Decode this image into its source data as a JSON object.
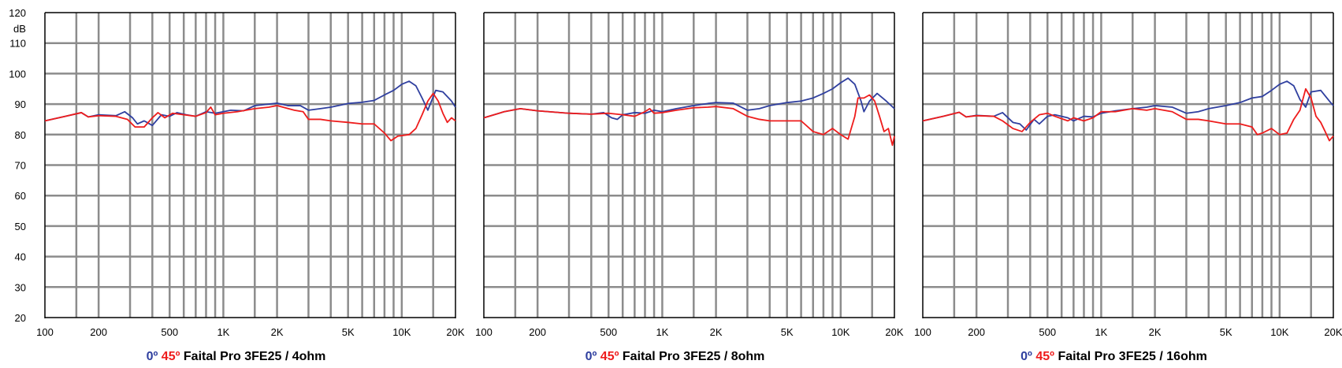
{
  "colors": {
    "blue": "#2f3f9f",
    "red": "#ee1c1c",
    "grid": "#8c8c8c",
    "axis": "#000000"
  },
  "chart_data": [
    {
      "type": "line",
      "title_prefix_0": "0º",
      "title_prefix_45": "45º",
      "title_text": "Faital Pro 3FE25 / 4ohm",
      "ylabel": "dB",
      "xscale": "log",
      "xlim": [
        100,
        20000
      ],
      "ylim": [
        20,
        120
      ],
      "x_ticks": [
        100,
        200,
        500,
        1000,
        2000,
        5000,
        10000,
        20000
      ],
      "x_tick_labels": [
        "100",
        "200",
        "500",
        "1K",
        "2K",
        "5K",
        "10K",
        "20K"
      ],
      "y_ticks": [
        20,
        30,
        40,
        50,
        60,
        70,
        80,
        90,
        100,
        110,
        120
      ],
      "y_tick_labels": [
        "20",
        "30",
        "40",
        "50",
        "60",
        "70",
        "80",
        "90",
        "100",
        "110",
        "120"
      ],
      "grid": true,
      "series": [
        {
          "name": "0º",
          "color": "#2f3f9f",
          "points": [
            [
              100,
              84.5
            ],
            [
              130,
              86
            ],
            [
              160,
              87.2
            ],
            [
              175,
              85.8
            ],
            [
              200,
              86.5
            ],
            [
              250,
              86.2
            ],
            [
              280,
              87.5
            ],
            [
              310,
              85.5
            ],
            [
              330,
              83.5
            ],
            [
              360,
              84.5
            ],
            [
              400,
              83
            ],
            [
              450,
              86.5
            ],
            [
              500,
              86
            ],
            [
              550,
              87.2
            ],
            [
              620,
              86.5
            ],
            [
              700,
              86
            ],
            [
              800,
              87.5
            ],
            [
              900,
              87
            ],
            [
              1000,
              87.5
            ],
            [
              1100,
              88
            ],
            [
              1300,
              87.8
            ],
            [
              1500,
              89.5
            ],
            [
              1800,
              90
            ],
            [
              2000,
              90.3
            ],
            [
              2300,
              89.5
            ],
            [
              2700,
              89.5
            ],
            [
              3000,
              88
            ],
            [
              3500,
              88.5
            ],
            [
              4000,
              89
            ],
            [
              5000,
              90.2
            ],
            [
              6000,
              90.6
            ],
            [
              7000,
              91.2
            ],
            [
              8000,
              93
            ],
            [
              9000,
              94.5
            ],
            [
              10000,
              96.5
            ],
            [
              11000,
              97.5
            ],
            [
              12000,
              96
            ],
            [
              13000,
              92
            ],
            [
              14000,
              88
            ],
            [
              15500,
              94.5
            ],
            [
              17000,
              94
            ],
            [
              19000,
              91
            ],
            [
              20000,
              89
            ]
          ]
        },
        {
          "name": "45º",
          "color": "#ee1c1c",
          "points": [
            [
              100,
              84.5
            ],
            [
              130,
              86
            ],
            [
              160,
              87.2
            ],
            [
              175,
              85.8
            ],
            [
              200,
              86.2
            ],
            [
              250,
              86
            ],
            [
              290,
              85
            ],
            [
              320,
              82.5
            ],
            [
              360,
              82.5
            ],
            [
              400,
              85.5
            ],
            [
              430,
              87.2
            ],
            [
              470,
              85.5
            ],
            [
              520,
              87
            ],
            [
              600,
              86.5
            ],
            [
              700,
              86
            ],
            [
              800,
              87.2
            ],
            [
              850,
              89
            ],
            [
              900,
              86.5
            ],
            [
              1000,
              87
            ],
            [
              1200,
              87.5
            ],
            [
              1500,
              88.5
            ],
            [
              1800,
              89
            ],
            [
              2000,
              89.5
            ],
            [
              2500,
              88
            ],
            [
              2800,
              87.5
            ],
            [
              3000,
              85
            ],
            [
              3500,
              85
            ],
            [
              4000,
              84.5
            ],
            [
              5000,
              84
            ],
            [
              6000,
              83.5
            ],
            [
              7000,
              83.5
            ],
            [
              8000,
              80.5
            ],
            [
              8700,
              78
            ],
            [
              9500,
              79.5
            ],
            [
              11000,
              80
            ],
            [
              12000,
              82
            ],
            [
              13000,
              86.5
            ],
            [
              14000,
              91
            ],
            [
              15000,
              93.5
            ],
            [
              16000,
              91
            ],
            [
              17000,
              87
            ],
            [
              18000,
              84
            ],
            [
              19000,
              85.5
            ],
            [
              20000,
              84.5
            ]
          ]
        }
      ]
    },
    {
      "type": "line",
      "title_prefix_0": "0º",
      "title_prefix_45": "45º",
      "title_text": "Faital Pro 3FE25 / 8ohm",
      "ylabel": "",
      "xscale": "log",
      "xlim": [
        100,
        20000
      ],
      "ylim": [
        20,
        120
      ],
      "x_ticks": [
        100,
        200,
        500,
        1000,
        2000,
        5000,
        10000,
        20000
      ],
      "x_tick_labels": [
        "100",
        "200",
        "500",
        "1K",
        "2K",
        "5K",
        "10K",
        "20K"
      ],
      "y_ticks": [],
      "y_tick_labels": [],
      "grid": true,
      "series": [
        {
          "name": "0º",
          "color": "#2f3f9f",
          "points": [
            [
              100,
              85.5
            ],
            [
              130,
              87.5
            ],
            [
              160,
              88.5
            ],
            [
              200,
              87.8
            ],
            [
              300,
              87
            ],
            [
              400,
              86.7
            ],
            [
              470,
              87.2
            ],
            [
              520,
              85.5
            ],
            [
              560,
              85
            ],
            [
              600,
              86.5
            ],
            [
              700,
              87.2
            ],
            [
              800,
              87
            ],
            [
              900,
              88
            ],
            [
              1000,
              87.5
            ],
            [
              1200,
              88.5
            ],
            [
              1500,
              89.5
            ],
            [
              1800,
              90.2
            ],
            [
              2000,
              90.5
            ],
            [
              2500,
              90.3
            ],
            [
              3000,
              88
            ],
            [
              3500,
              88.5
            ],
            [
              4000,
              89.5
            ],
            [
              5000,
              90.5
            ],
            [
              6000,
              91
            ],
            [
              7000,
              92
            ],
            [
              8000,
              93.5
            ],
            [
              9000,
              95
            ],
            [
              10000,
              97
            ],
            [
              11000,
              98.5
            ],
            [
              12000,
              96.5
            ],
            [
              13000,
              91
            ],
            [
              13500,
              87.5
            ],
            [
              14500,
              91
            ],
            [
              16000,
              93.5
            ],
            [
              18000,
              91
            ],
            [
              20000,
              88.5
            ]
          ]
        },
        {
          "name": "45º",
          "color": "#ee1c1c",
          "points": [
            [
              100,
              85.5
            ],
            [
              130,
              87.5
            ],
            [
              160,
              88.5
            ],
            [
              200,
              87.8
            ],
            [
              300,
              87
            ],
            [
              400,
              86.7
            ],
            [
              500,
              87
            ],
            [
              600,
              86.5
            ],
            [
              700,
              86
            ],
            [
              800,
              87.5
            ],
            [
              850,
              88.5
            ],
            [
              900,
              87
            ],
            [
              1000,
              87.2
            ],
            [
              1200,
              88
            ],
            [
              1500,
              88.8
            ],
            [
              1800,
              89
            ],
            [
              2000,
              89.2
            ],
            [
              2500,
              88.5
            ],
            [
              3000,
              86
            ],
            [
              3500,
              85
            ],
            [
              4000,
              84.5
            ],
            [
              5000,
              84.5
            ],
            [
              6000,
              84.5
            ],
            [
              7000,
              81
            ],
            [
              8000,
              80
            ],
            [
              9000,
              82
            ],
            [
              10000,
              80
            ],
            [
              11000,
              78.5
            ],
            [
              12000,
              86
            ],
            [
              12500,
              92
            ],
            [
              13500,
              92
            ],
            [
              14500,
              93
            ],
            [
              15500,
              91
            ],
            [
              16500,
              86
            ],
            [
              17500,
              81
            ],
            [
              18500,
              82
            ],
            [
              19500,
              76.5
            ],
            [
              20000,
              79.5
            ]
          ]
        }
      ]
    },
    {
      "type": "line",
      "title_prefix_0": "0º",
      "title_prefix_45": "45º",
      "title_text": "Faital Pro 3FE25 / 16ohm",
      "ylabel": "",
      "xscale": "log",
      "xlim": [
        100,
        20000
      ],
      "ylim": [
        20,
        120
      ],
      "x_ticks": [
        100,
        200,
        500,
        1000,
        2000,
        5000,
        10000,
        20000
      ],
      "x_tick_labels": [
        "100",
        "200",
        "500",
        "1K",
        "2K",
        "5K",
        "10K",
        "20K"
      ],
      "y_ticks": [],
      "y_tick_labels": [],
      "grid": true,
      "series": [
        {
          "name": "0º",
          "color": "#2f3f9f",
          "points": [
            [
              100,
              84.5
            ],
            [
              130,
              86
            ],
            [
              160,
              87.3
            ],
            [
              175,
              85.8
            ],
            [
              200,
              86.3
            ],
            [
              250,
              86
            ],
            [
              280,
              87.2
            ],
            [
              320,
              84
            ],
            [
              350,
              83.5
            ],
            [
              380,
              81.5
            ],
            [
              420,
              85
            ],
            [
              450,
              83.5
            ],
            [
              500,
              86
            ],
            [
              550,
              86.5
            ],
            [
              650,
              85.5
            ],
            [
              700,
              84.5
            ],
            [
              800,
              86
            ],
            [
              900,
              85.8
            ],
            [
              1000,
              87
            ],
            [
              1200,
              87.8
            ],
            [
              1500,
              88.5
            ],
            [
              1800,
              89
            ],
            [
              2000,
              89.5
            ],
            [
              2500,
              89
            ],
            [
              3000,
              87
            ],
            [
              3500,
              87.5
            ],
            [
              4000,
              88.5
            ],
            [
              5000,
              89.5
            ],
            [
              6000,
              90.5
            ],
            [
              7000,
              92
            ],
            [
              8000,
              92.5
            ],
            [
              9000,
              94.5
            ],
            [
              10000,
              96.5
            ],
            [
              11000,
              97.5
            ],
            [
              12000,
              96
            ],
            [
              13000,
              91.5
            ],
            [
              14000,
              89
            ],
            [
              15000,
              94
            ],
            [
              17000,
              94.5
            ],
            [
              19000,
              91
            ],
            [
              20000,
              89.5
            ]
          ]
        },
        {
          "name": "45º",
          "color": "#ee1c1c",
          "points": [
            [
              100,
              84.5
            ],
            [
              130,
              86
            ],
            [
              160,
              87.3
            ],
            [
              175,
              85.8
            ],
            [
              200,
              86.2
            ],
            [
              250,
              86
            ],
            [
              280,
              84.5
            ],
            [
              320,
              82
            ],
            [
              360,
              81
            ],
            [
              400,
              84
            ],
            [
              450,
              86.5
            ],
            [
              500,
              87
            ],
            [
              550,
              86
            ],
            [
              650,
              84.5
            ],
            [
              700,
              85.5
            ],
            [
              800,
              84.5
            ],
            [
              900,
              85.5
            ],
            [
              1000,
              87.5
            ],
            [
              1200,
              87.5
            ],
            [
              1500,
              88.5
            ],
            [
              1800,
              88
            ],
            [
              2000,
              88.5
            ],
            [
              2500,
              87.5
            ],
            [
              3000,
              85
            ],
            [
              3500,
              85
            ],
            [
              4000,
              84.5
            ],
            [
              5000,
              83.5
            ],
            [
              6000,
              83.5
            ],
            [
              7000,
              82.5
            ],
            [
              7500,
              80
            ],
            [
              8000,
              80.5
            ],
            [
              9000,
              82
            ],
            [
              10000,
              80
            ],
            [
              11000,
              80.5
            ],
            [
              12000,
              85
            ],
            [
              13000,
              88
            ],
            [
              14000,
              95
            ],
            [
              15000,
              92
            ],
            [
              16000,
              86
            ],
            [
              17000,
              84
            ],
            [
              18000,
              81
            ],
            [
              19000,
              78
            ],
            [
              20000,
              79.5
            ]
          ]
        }
      ]
    }
  ]
}
